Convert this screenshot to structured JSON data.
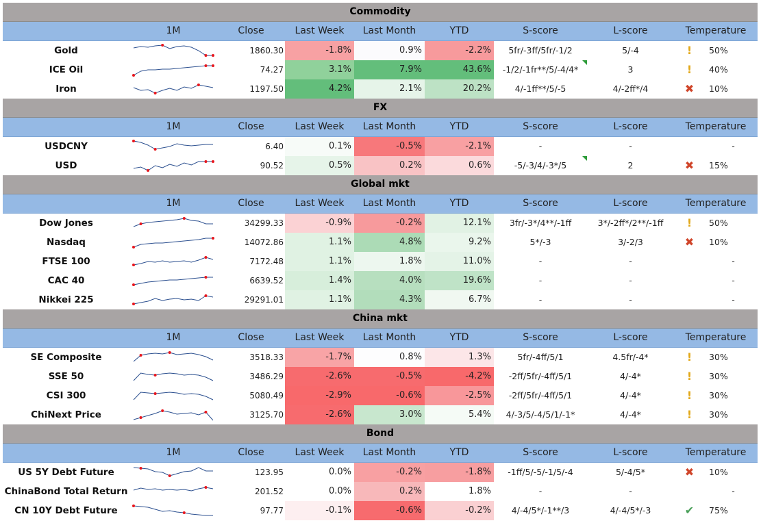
{
  "headers": {
    "spark": "1M",
    "close": "Close",
    "last_week": "Last Week",
    "last_month": "Last Month",
    "ytd": "YTD",
    "s_score": "S-score",
    "l_score": "L-score",
    "temperature": "Temperature"
  },
  "icon_legend": {
    "warn": "exclamation-icon",
    "cross": "cross-icon",
    "check": "checkmark-icon"
  },
  "colors": {
    "section_bg": "#a8a4a4",
    "header_bg": "#95b9e4",
    "sparkline": "#2b4f8f",
    "spark_marker": "#e8161d"
  },
  "sections": [
    {
      "title": "Commodity",
      "rows": [
        {
          "name": "Gold",
          "close": "1860.30",
          "lw": "-1.8%",
          "lm": "0.9%",
          "ytd": "-2.2%",
          "lw_bg": "#f7a1a3",
          "lm_bg": "#fbfbfd",
          "ytd_bg": "#f79a9c",
          "s": "5fr/-3ff/5fr/-1/2",
          "l": "5/-4",
          "icon": "warn",
          "temp": "50%",
          "flag": false,
          "spark": [
            0.3,
            0.2,
            0.25,
            0.15,
            0.1,
            0.35,
            0.2,
            0.15,
            0.25,
            0.5,
            0.85,
            0.85
          ],
          "marks": [
            4,
            10,
            11
          ]
        },
        {
          "name": "ICE Oil",
          "close": "74.27",
          "lw": "3.1%",
          "lm": "7.9%",
          "ytd": "43.6%",
          "lw_bg": "#90d19b",
          "lm_bg": "#63be7b",
          "ytd_bg": "#63be7b",
          "s": "-1/2/-1fr**/5/-4/4*",
          "l": "3",
          "icon": "warn",
          "temp": "40%",
          "flag": true,
          "spark": [
            0.9,
            0.6,
            0.5,
            0.5,
            0.45,
            0.45,
            0.4,
            0.35,
            0.3,
            0.25,
            0.2,
            0.2
          ],
          "marks": [
            0,
            10,
            11
          ]
        },
        {
          "name": "Iron",
          "close": "1197.50",
          "lw": "4.2%",
          "lm": "2.1%",
          "ytd": "20.2%",
          "lw_bg": "#63be7b",
          "lm_bg": "#e6f4e9",
          "ytd_bg": "#bde2c5",
          "s": "4/-1ff**/5/-5",
          "l": "4/-2ff*/4",
          "icon": "cross",
          "temp": "10%",
          "flag": false,
          "spark": [
            0.4,
            0.6,
            0.55,
            0.8,
            0.6,
            0.45,
            0.6,
            0.35,
            0.45,
            0.2,
            0.3,
            0.4
          ],
          "marks": [
            3,
            9
          ]
        }
      ]
    },
    {
      "title": "FX",
      "rows": [
        {
          "name": "USDCNY",
          "close": "6.40",
          "lw": "0.1%",
          "lm": "-0.5%",
          "ytd": "-2.1%",
          "lw_bg": "#f7fbf8",
          "lm_bg": "#f7787b",
          "ytd_bg": "#f8a0a2",
          "s": "-",
          "l": "-",
          "icon": "",
          "temp": "-",
          "flag": false,
          "spark": [
            0.1,
            0.2,
            0.4,
            0.7,
            0.6,
            0.5,
            0.3,
            0.4,
            0.45,
            0.4,
            0.35,
            0.35
          ],
          "marks": [
            0,
            3
          ]
        },
        {
          "name": "USD",
          "close": "90.52",
          "lw": "0.5%",
          "lm": "0.2%",
          "ytd": "0.6%",
          "lw_bg": "#e6f4e9",
          "lm_bg": "#f9c3c5",
          "ytd_bg": "#fbdadc",
          "s": "-5/-3/4/-3*/5",
          "l": "2",
          "icon": "cross",
          "temp": "15%",
          "flag": true,
          "spark": [
            0.7,
            0.6,
            0.85,
            0.5,
            0.65,
            0.4,
            0.55,
            0.3,
            0.45,
            0.2,
            0.2,
            0.2
          ],
          "marks": [
            2,
            10,
            11
          ]
        }
      ]
    },
    {
      "title": "Global mkt",
      "rows": [
        {
          "name": "Dow Jones",
          "close": "34299.33",
          "lw": "-0.9%",
          "lm": "-0.2%",
          "ytd": "12.1%",
          "lw_bg": "#fbd2d4",
          "lm_bg": "#f79a9c",
          "ytd_bg": "#e1f2e4",
          "s": "3fr/-3*/4**/-1ff",
          "l": "3*/-2ff*/2**/-1ff",
          "icon": "warn",
          "temp": "50%",
          "flag": false,
          "spark": [
            0.75,
            0.55,
            0.45,
            0.4,
            0.35,
            0.3,
            0.25,
            0.15,
            0.3,
            0.35,
            0.55,
            0.55
          ],
          "marks": [
            1,
            7
          ]
        },
        {
          "name": "Nasdaq",
          "close": "14072.86",
          "lw": "1.1%",
          "lm": "4.8%",
          "ytd": "9.2%",
          "lw_bg": "#e0f2e3",
          "lm_bg": "#acdbb6",
          "ytd_bg": "#eaf6ec",
          "s": "5*/-3",
          "l": "3/-2/3",
          "icon": "cross",
          "temp": "10%",
          "flag": false,
          "spark": [
            0.85,
            0.65,
            0.6,
            0.55,
            0.55,
            0.5,
            0.45,
            0.4,
            0.35,
            0.3,
            0.2,
            0.2
          ],
          "marks": [
            0,
            11
          ]
        },
        {
          "name": "FTSE 100",
          "close": "7172.48",
          "lw": "1.1%",
          "lm": "1.8%",
          "ytd": "11.0%",
          "lw_bg": "#e0f2e3",
          "lm_bg": "#edf7ef",
          "ytd_bg": "#e4f3e7",
          "s": "-",
          "l": "-",
          "icon": "",
          "temp": "-",
          "flag": false,
          "spark": [
            0.75,
            0.65,
            0.5,
            0.55,
            0.45,
            0.55,
            0.5,
            0.45,
            0.55,
            0.4,
            0.2,
            0.35
          ],
          "marks": [
            0,
            10
          ]
        },
        {
          "name": "CAC 40",
          "close": "6639.52",
          "lw": "1.4%",
          "lm": "4.0%",
          "ytd": "19.6%",
          "lw_bg": "#d7eedb",
          "lm_bg": "#b7dfbf",
          "ytd_bg": "#bfe3c7",
          "s": "-",
          "l": "-",
          "icon": "",
          "temp": "-",
          "flag": false,
          "spark": [
            0.8,
            0.7,
            0.6,
            0.55,
            0.5,
            0.45,
            0.45,
            0.4,
            0.35,
            0.3,
            0.25,
            0.25
          ],
          "marks": [
            0,
            10
          ]
        },
        {
          "name": "Nikkei 225",
          "close": "29291.01",
          "lw": "1.1%",
          "lm": "4.3%",
          "ytd": "6.7%",
          "lw_bg": "#e0f2e3",
          "lm_bg": "#b2ddbb",
          "ytd_bg": "#f0f8f1",
          "s": "-",
          "l": "-",
          "icon": "",
          "temp": "-",
          "flag": false,
          "spark": [
            0.8,
            0.7,
            0.6,
            0.4,
            0.55,
            0.45,
            0.4,
            0.5,
            0.45,
            0.55,
            0.2,
            0.3
          ],
          "marks": [
            0,
            10
          ]
        }
      ]
    },
    {
      "title": "China mkt",
      "rows": [
        {
          "name": "SE Composite",
          "close": "3518.33",
          "lw": "-1.7%",
          "lm": "0.8%",
          "ytd": "1.3%",
          "lw_bg": "#f8a4a6",
          "lm_bg": "#fdfdfe",
          "ytd_bg": "#fce6e8",
          "s": "5fr/-4ff/5/1",
          "l": "4.5fr/-4*",
          "icon": "warn",
          "temp": "30%",
          "flag": false,
          "spark": [
            0.8,
            0.35,
            0.25,
            0.2,
            0.25,
            0.15,
            0.3,
            0.25,
            0.2,
            0.3,
            0.45,
            0.7
          ],
          "marks": [
            1,
            5
          ]
        },
        {
          "name": "SSE 50",
          "close": "3486.29",
          "lw": "-2.6%",
          "lm": "-0.5%",
          "ytd": "-4.2%",
          "lw_bg": "#f76b6e",
          "lm_bg": "#f76b6e",
          "ytd_bg": "#f8696b",
          "s": "-2ff/5fr/-4ff/5/1",
          "l": "4/-4*",
          "icon": "warn",
          "temp": "30%",
          "flag": false,
          "spark": [
            0.8,
            0.25,
            0.35,
            0.4,
            0.3,
            0.25,
            0.3,
            0.4,
            0.35,
            0.4,
            0.55,
            0.8
          ],
          "marks": [
            3
          ]
        },
        {
          "name": "CSI 300",
          "close": "5080.49",
          "lw": "-2.9%",
          "lm": "-0.6%",
          "ytd": "-2.5%",
          "lw_bg": "#f8696b",
          "lm_bg": "#f8696b",
          "ytd_bg": "#f8979a",
          "s": "-2ff/5fr/-4ff/5/1",
          "l": "4/-4*",
          "icon": "warn",
          "temp": "30%",
          "flag": false,
          "spark": [
            0.8,
            0.25,
            0.3,
            0.35,
            0.3,
            0.25,
            0.3,
            0.4,
            0.35,
            0.4,
            0.55,
            0.8
          ],
          "marks": [
            3
          ]
        },
        {
          "name": "ChiNext Price",
          "close": "3125.70",
          "lw": "-2.6%",
          "lm": "3.0%",
          "ytd": "5.4%",
          "lw_bg": "#f76b6e",
          "lm_bg": "#c8e7ce",
          "ytd_bg": "#f5fbf6",
          "s": "4/-3/5/-4/5/1/-1*",
          "l": "4/-4*",
          "icon": "warn",
          "temp": "30%",
          "flag": false,
          "spark": [
            0.85,
            0.7,
            0.55,
            0.4,
            0.2,
            0.3,
            0.45,
            0.4,
            0.35,
            0.5,
            0.3,
            0.9
          ],
          "marks": [
            1,
            4,
            10
          ]
        }
      ]
    },
    {
      "title": "Bond",
      "rows": [
        {
          "name": "US 5Y Debt Future",
          "close": "123.95",
          "lw": "0.0%",
          "lm": "-0.2%",
          "ytd": "-1.8%",
          "lw_bg": "#ffffff",
          "lm_bg": "#f8a0a2",
          "ytd_bg": "#f79ea0",
          "s": "-1ff/5/-5/-1/5/-4",
          "l": "5/-4/5*",
          "icon": "cross",
          "temp": "10%",
          "flag": false,
          "spark": [
            0.15,
            0.2,
            0.25,
            0.45,
            0.5,
            0.75,
            0.6,
            0.45,
            0.4,
            0.15,
            0.4,
            0.4
          ],
          "marks": [
            1,
            5
          ]
        },
        {
          "name": "ChinaBond Total Return",
          "close": "201.52",
          "lw": "0.0%",
          "lm": "0.2%",
          "ytd": "1.8%",
          "lw_bg": "#ffffff",
          "lm_bg": "#f8b8ba",
          "ytd_bg": "#ffffff",
          "s": "-",
          "l": "-",
          "icon": "",
          "temp": "-",
          "flag": false,
          "spark": [
            0.4,
            0.25,
            0.35,
            0.3,
            0.4,
            0.35,
            0.4,
            0.35,
            0.45,
            0.3,
            0.2,
            0.3
          ],
          "marks": [
            10
          ]
        },
        {
          "name": "CN 10Y Debt Future",
          "close": "97.77",
          "lw": "-0.1%",
          "lm": "-0.6%",
          "ytd": "-0.2%",
          "lw_bg": "#fdeff0",
          "lm_bg": "#f76b6e",
          "ytd_bg": "#fad0d2",
          "s": "4/-4/5*/-1**/3",
          "l": "4/-4/5*/-3",
          "icon": "check",
          "temp": "75%",
          "flag": false,
          "spark": [
            0.15,
            0.2,
            0.25,
            0.4,
            0.55,
            0.5,
            0.6,
            0.65,
            0.75,
            0.8,
            0.85,
            0.85
          ],
          "marks": [
            0,
            7
          ]
        }
      ]
    }
  ]
}
